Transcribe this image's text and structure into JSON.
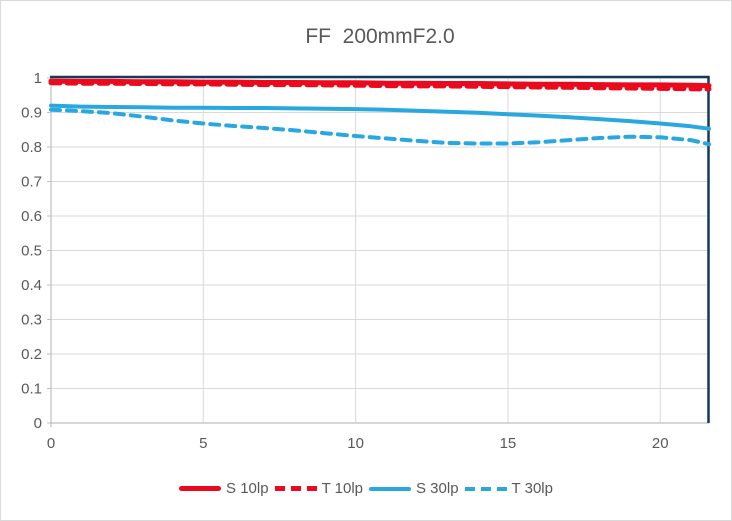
{
  "chart_data": {
    "type": "line",
    "title": "FF  200mmF2.0",
    "xlabel": "",
    "ylabel": "",
    "xlim": [
      0,
      21.6
    ],
    "ylim": [
      0,
      1
    ],
    "x_ticks": [
      0,
      5,
      10,
      15,
      20
    ],
    "x_tick_labels": [
      "0",
      "5",
      "10",
      "15",
      "20"
    ],
    "y_ticks": [
      0,
      0.1,
      0.2,
      0.3,
      0.4,
      0.5,
      0.6,
      0.7,
      0.8,
      0.9,
      1
    ],
    "y_tick_labels": [
      "0",
      "0.1",
      "0.2",
      "0.3",
      "0.4",
      "0.5",
      "0.6",
      "0.7",
      "0.8",
      "0.9",
      "1"
    ],
    "grid": true,
    "legend_position": "bottom",
    "x": [
      0,
      1,
      2,
      3,
      4,
      5,
      6,
      7,
      8,
      9,
      10,
      11,
      12,
      13,
      14,
      15,
      16,
      17,
      18,
      19,
      20,
      21,
      21.6
    ],
    "series": [
      {
        "name": "S 10lp",
        "color": "#ea0a1e",
        "style": "solid",
        "width": 5,
        "values": [
          0.991,
          0.99,
          0.99,
          0.989,
          0.989,
          0.988,
          0.988,
          0.987,
          0.987,
          0.986,
          0.986,
          0.985,
          0.985,
          0.984,
          0.984,
          0.983,
          0.982,
          0.982,
          0.981,
          0.98,
          0.98,
          0.979,
          0.978
        ]
      },
      {
        "name": "T 10lp",
        "color": "#ea0a1e",
        "style": "dashed",
        "width": 5,
        "values": [
          0.986,
          0.985,
          0.985,
          0.984,
          0.983,
          0.983,
          0.982,
          0.981,
          0.981,
          0.98,
          0.979,
          0.978,
          0.977,
          0.977,
          0.976,
          0.975,
          0.974,
          0.973,
          0.972,
          0.971,
          0.97,
          0.969,
          0.968
        ]
      },
      {
        "name": "S 30lp",
        "color": "#29a8e0",
        "style": "solid",
        "width": 4,
        "values": [
          0.92,
          0.917,
          0.916,
          0.915,
          0.914,
          0.914,
          0.913,
          0.913,
          0.912,
          0.911,
          0.91,
          0.908,
          0.905,
          0.902,
          0.899,
          0.895,
          0.891,
          0.886,
          0.881,
          0.875,
          0.868,
          0.86,
          0.853
        ]
      },
      {
        "name": "T 30lp",
        "color": "#29a8e0",
        "style": "dashed",
        "width": 4,
        "values": [
          0.908,
          0.904,
          0.898,
          0.888,
          0.877,
          0.868,
          0.861,
          0.855,
          0.848,
          0.84,
          0.832,
          0.825,
          0.818,
          0.812,
          0.81,
          0.81,
          0.814,
          0.82,
          0.826,
          0.83,
          0.828,
          0.82,
          0.808
        ]
      }
    ],
    "colors": {
      "gridline": "#d9d9d9",
      "axis_line": "#bfbfbf",
      "plot_border": "#17375e",
      "tick_text": "#595959",
      "title_text": "#595959",
      "frame_border": "#d9d9d9",
      "background": "#ffffff"
    }
  }
}
